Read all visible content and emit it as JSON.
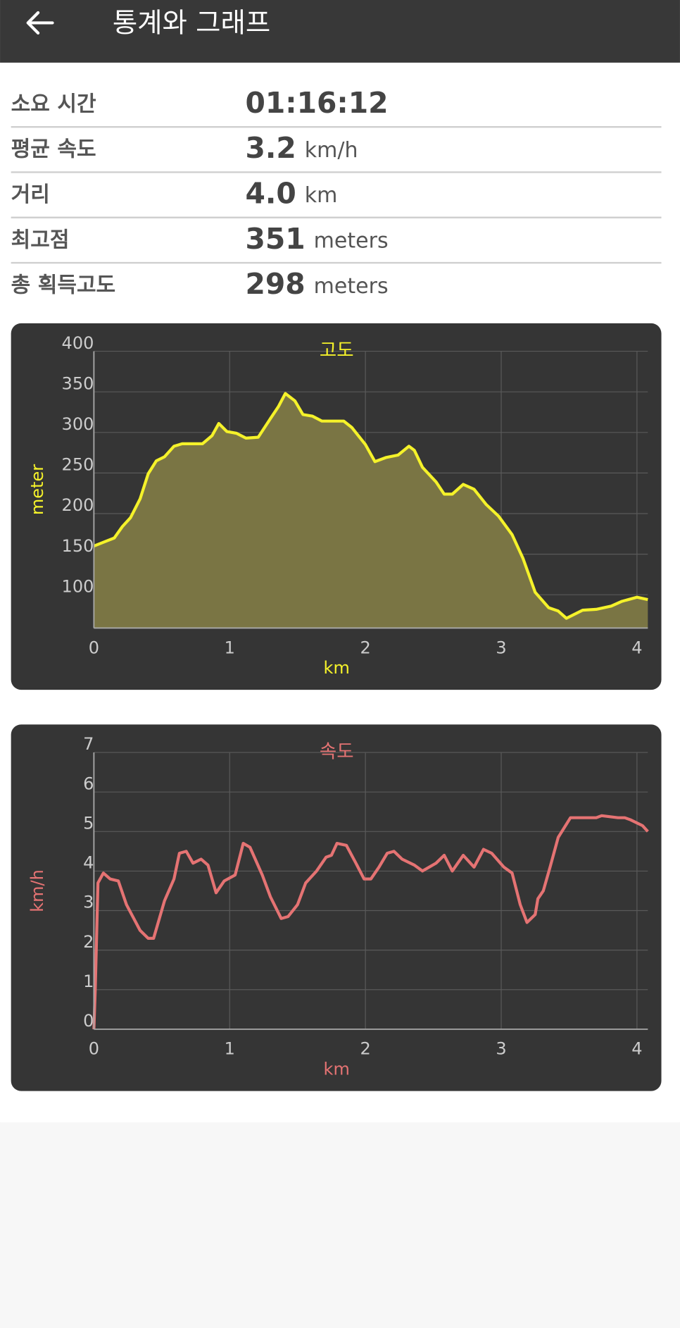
{
  "header": {
    "title": "통계와 그래프"
  },
  "stats": [
    {
      "label": "소요 시간",
      "value": "01:16:12"
    },
    {
      "label": "평균 속도",
      "value": "3.2",
      "unit": "km/h"
    },
    {
      "label": "거리",
      "value": "4.0",
      "unit": "km"
    },
    {
      "label": "최고점",
      "value": "351",
      "unit": "meters"
    },
    {
      "label": "총 획득고도",
      "value": "298",
      "unit": "meters"
    }
  ],
  "chart_data": [
    {
      "type": "area",
      "title": "고도",
      "x_label": "km",
      "y_label": "meter",
      "color": "#f5f22a",
      "fill_color": "#7a7544",
      "grid": true,
      "x": [
        0,
        0.09,
        0.15,
        0.21,
        0.27,
        0.34,
        0.4,
        0.46,
        0.52,
        0.59,
        0.65,
        0.8,
        0.87,
        0.92,
        0.98,
        1.05,
        1.12,
        1.21,
        1.3,
        1.36,
        1.41,
        1.48,
        1.54,
        1.61,
        1.68,
        1.84,
        1.9,
        2.0,
        2.07,
        2.15,
        2.24,
        2.32,
        2.36,
        2.42,
        2.52,
        2.58,
        2.64,
        2.72,
        2.8,
        2.89,
        2.98,
        3.08,
        3.16,
        3.25,
        3.35,
        3.42,
        3.48,
        3.6,
        3.7,
        3.81,
        3.89,
        4.0,
        4.08
      ],
      "values": [
        160,
        166,
        170,
        184,
        195,
        218,
        249,
        265,
        270,
        283,
        286,
        286,
        296,
        311,
        301,
        299,
        293,
        294,
        317,
        332,
        348,
        339,
        322,
        320,
        314,
        314,
        306,
        285,
        264,
        269,
        272,
        283,
        278,
        257,
        239,
        224,
        224,
        236,
        230,
        211,
        197,
        174,
        145,
        103,
        84,
        80,
        71,
        81,
        82,
        86,
        92,
        97,
        94
      ],
      "xlim": [
        0,
        4.08
      ],
      "xticks": [
        0,
        1,
        2,
        3,
        4
      ],
      "ylim": [
        59,
        400
      ],
      "yticks": [
        100,
        150,
        200,
        250,
        300,
        350,
        400
      ]
    },
    {
      "type": "line",
      "title": "속도",
      "x_label": "km",
      "y_label": "km/h",
      "color": "#e57373",
      "grid": true,
      "x": [
        0,
        0.01,
        0.03,
        0.07,
        0.12,
        0.18,
        0.24,
        0.34,
        0.4,
        0.44,
        0.52,
        0.59,
        0.63,
        0.68,
        0.73,
        0.79,
        0.84,
        0.9,
        0.96,
        1.04,
        1.1,
        1.15,
        1.24,
        1.3,
        1.38,
        1.43,
        1.5,
        1.56,
        1.64,
        1.71,
        1.75,
        1.79,
        1.86,
        1.93,
        1.99,
        2.04,
        2.1,
        2.16,
        2.21,
        2.27,
        2.36,
        2.42,
        2.52,
        2.58,
        2.64,
        2.72,
        2.8,
        2.87,
        2.93,
        3.02,
        3.08,
        3.14,
        3.19,
        3.25,
        3.27,
        3.31,
        3.36,
        3.42,
        3.51,
        3.6,
        3.7,
        3.74,
        3.86,
        3.91,
        3.95,
        4.04,
        4.08
      ],
      "values": [
        0,
        1.0,
        3.7,
        3.95,
        3.8,
        3.75,
        3.15,
        2.5,
        2.3,
        2.3,
        3.25,
        3.8,
        4.45,
        4.5,
        4.2,
        4.3,
        4.15,
        3.45,
        3.75,
        3.9,
        4.7,
        4.6,
        3.9,
        3.35,
        2.8,
        2.85,
        3.15,
        3.7,
        4.0,
        4.35,
        4.4,
        4.7,
        4.65,
        4.2,
        3.8,
        3.8,
        4.1,
        4.45,
        4.5,
        4.3,
        4.15,
        4.0,
        4.2,
        4.4,
        4.0,
        4.4,
        4.1,
        4.55,
        4.45,
        4.1,
        3.95,
        3.15,
        2.7,
        2.9,
        3.3,
        3.5,
        4.1,
        4.85,
        5.35,
        5.35,
        5.35,
        5.4,
        5.35,
        5.35,
        5.3,
        5.15,
        5.0
      ],
      "xlim": [
        0,
        4.08
      ],
      "xticks": [
        0,
        1,
        2,
        3,
        4
      ],
      "ylim": [
        0,
        7
      ],
      "yticks": [
        0,
        1,
        2,
        3,
        4,
        5,
        6,
        7
      ]
    }
  ]
}
